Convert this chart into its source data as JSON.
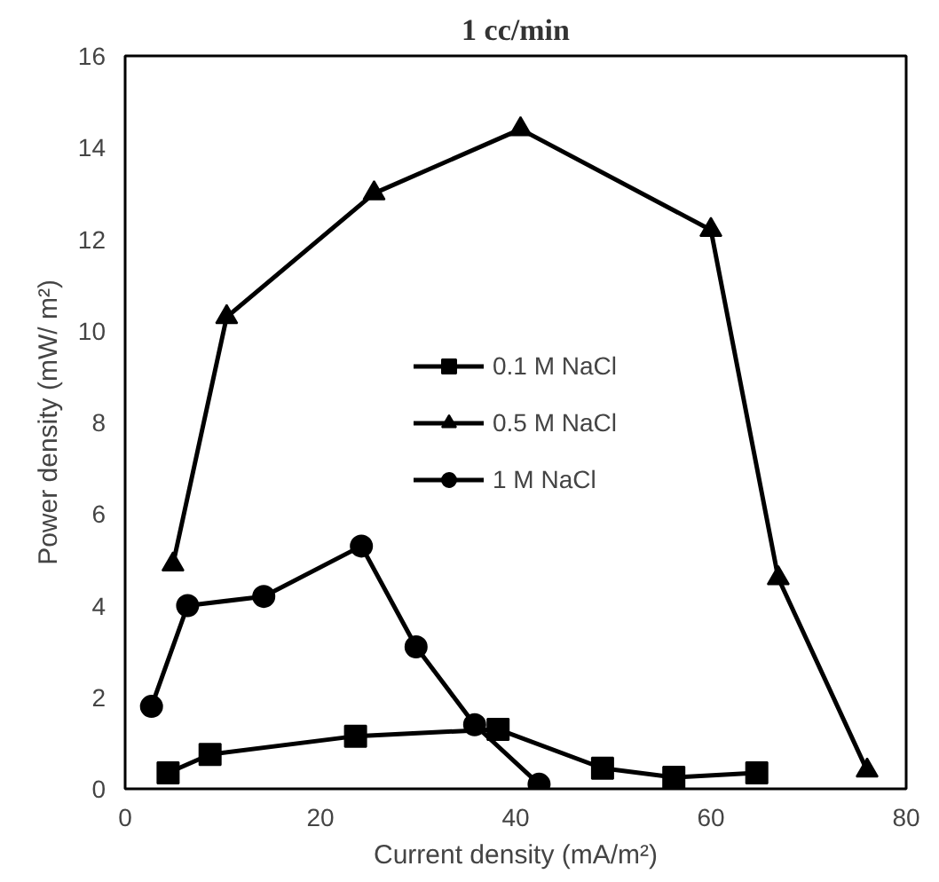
{
  "chart_data": {
    "type": "line",
    "title": "1 cc/min",
    "xlabel": "Current density (mA/m²)",
    "ylabel": "Power density (mW/ m²)",
    "xlim": [
      0,
      80
    ],
    "xticks": [
      0,
      20,
      40,
      60,
      80
    ],
    "ylim": [
      0,
      16
    ],
    "yticks": [
      0,
      2,
      4,
      6,
      8,
      10,
      12,
      14,
      16
    ],
    "grid": false,
    "legend": "center",
    "line_style": "solid",
    "series": [
      {
        "name": "0.1 M NaCl",
        "color": "#000000",
        "marker": "square",
        "x": [
          4.4,
          8.7,
          23.6,
          38.2,
          48.9,
          56.2,
          64.7
        ],
        "values": [
          0.35,
          0.75,
          1.15,
          1.3,
          0.45,
          0.25,
          0.35
        ]
      },
      {
        "name": "0.5 M NaCl",
        "color": "#000000",
        "marker": "triangle",
        "x": [
          4.9,
          10.4,
          25.5,
          40.5,
          60,
          66.9,
          76
        ],
        "values": [
          4.9,
          10.3,
          13.0,
          14.4,
          12.2,
          4.6,
          0.4
        ]
      },
      {
        "name": "1 M NaCl",
        "color": "#000000",
        "marker": "circle",
        "x": [
          2.7,
          6.4,
          14.2,
          24.2,
          29.8,
          35.8,
          42.4
        ],
        "values": [
          1.8,
          4.0,
          4.2,
          5.3,
          3.1,
          1.4,
          0.1
        ]
      }
    ]
  }
}
